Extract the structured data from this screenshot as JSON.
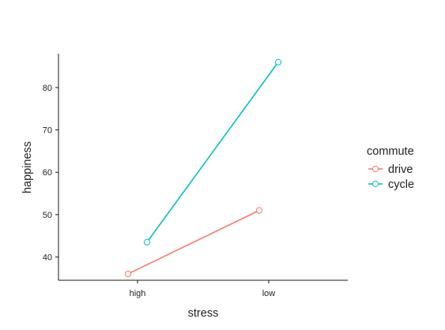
{
  "chart_data": {
    "type": "line",
    "xlabel": "stress",
    "ylabel": "happiness",
    "categories": [
      "high",
      "low"
    ],
    "ylim": [
      34.5,
      88
    ],
    "yticks": [
      40,
      50,
      60,
      70,
      80
    ],
    "grid": false,
    "legend": {
      "title": "commute",
      "placement": "right"
    },
    "series": [
      {
        "name": "drive",
        "color": "#F8766D",
        "values": [
          36,
          51
        ]
      },
      {
        "name": "cycle",
        "color": "#00BFC4",
        "values": [
          43.5,
          86
        ]
      }
    ]
  }
}
